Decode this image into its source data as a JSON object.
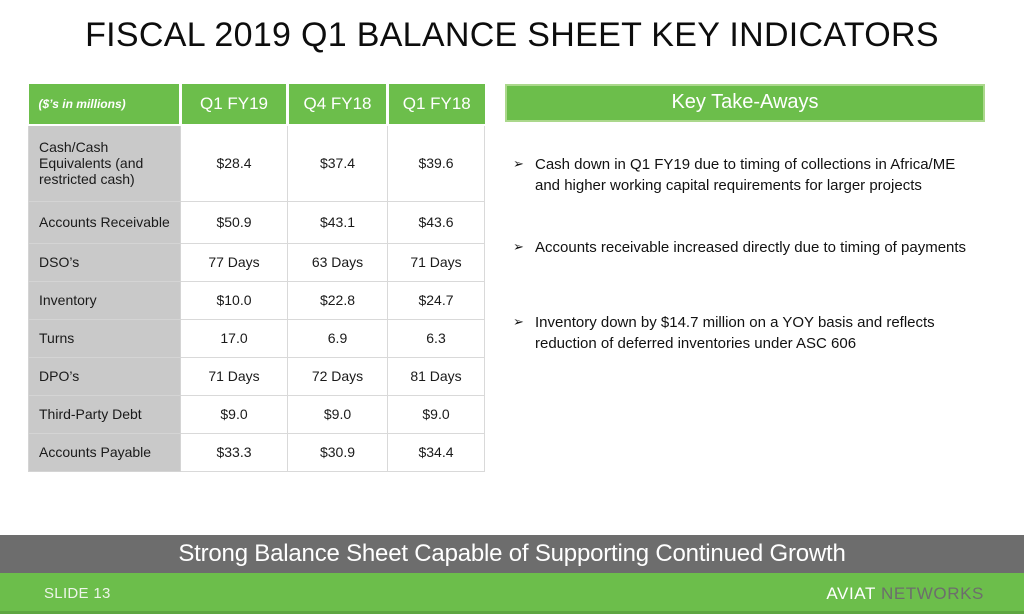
{
  "slide": {
    "title": "FISCAL 2019 Q1 BALANCE SHEET KEY INDICATORS",
    "banner": "Strong Balance Sheet Capable of Supporting Continued Growth",
    "footer": {
      "slide_number": "SLIDE 13",
      "brand_primary": "AVIAT",
      "brand_secondary": "NETWORKS"
    }
  },
  "table": {
    "headers": [
      "($’s in millions)",
      "Q1 FY19",
      "Q4 FY18",
      "Q1 FY18"
    ],
    "rows": [
      {
        "label": "Cash/Cash Equivalents (and restricted cash)",
        "values": [
          "$28.4",
          "$37.4",
          "$39.6"
        ]
      },
      {
        "label": "Accounts Receivable",
        "values": [
          "$50.9",
          "$43.1",
          "$43.6"
        ]
      },
      {
        "label": "DSO’s",
        "values": [
          "77 Days",
          "63 Days",
          "71 Days"
        ]
      },
      {
        "label": "Inventory",
        "values": [
          "$10.0",
          "$22.8",
          "$24.7"
        ]
      },
      {
        "label": "Turns",
        "values": [
          "17.0",
          "6.9",
          "6.3"
        ]
      },
      {
        "label": "DPO’s",
        "values": [
          "71 Days",
          "72 Days",
          "81 Days"
        ]
      },
      {
        "label": "Third-Party Debt",
        "values": [
          "$9.0",
          "$9.0",
          "$9.0"
        ]
      },
      {
        "label": "Accounts Payable",
        "values": [
          "$33.3",
          "$30.9",
          "$34.4"
        ]
      }
    ]
  },
  "takeaways": {
    "title": "Key Take-Aways",
    "bullet_char": "➢",
    "items": [
      "Cash down in Q1 FY19 due to timing of collections in Africa/ME and higher working capital requirements for larger projects",
      "Accounts receivable increased directly due to timing of payments",
      "Inventory down by $14.7 million on a YOY basis and reflects reduction of deferred inventories under ASC 606"
    ]
  },
  "colors": {
    "brand_green": "#6CBE4B",
    "banner_gray": "#6D6D6D",
    "label_gray": "#C9C9C9",
    "grid_border": "#D9D9D9"
  }
}
